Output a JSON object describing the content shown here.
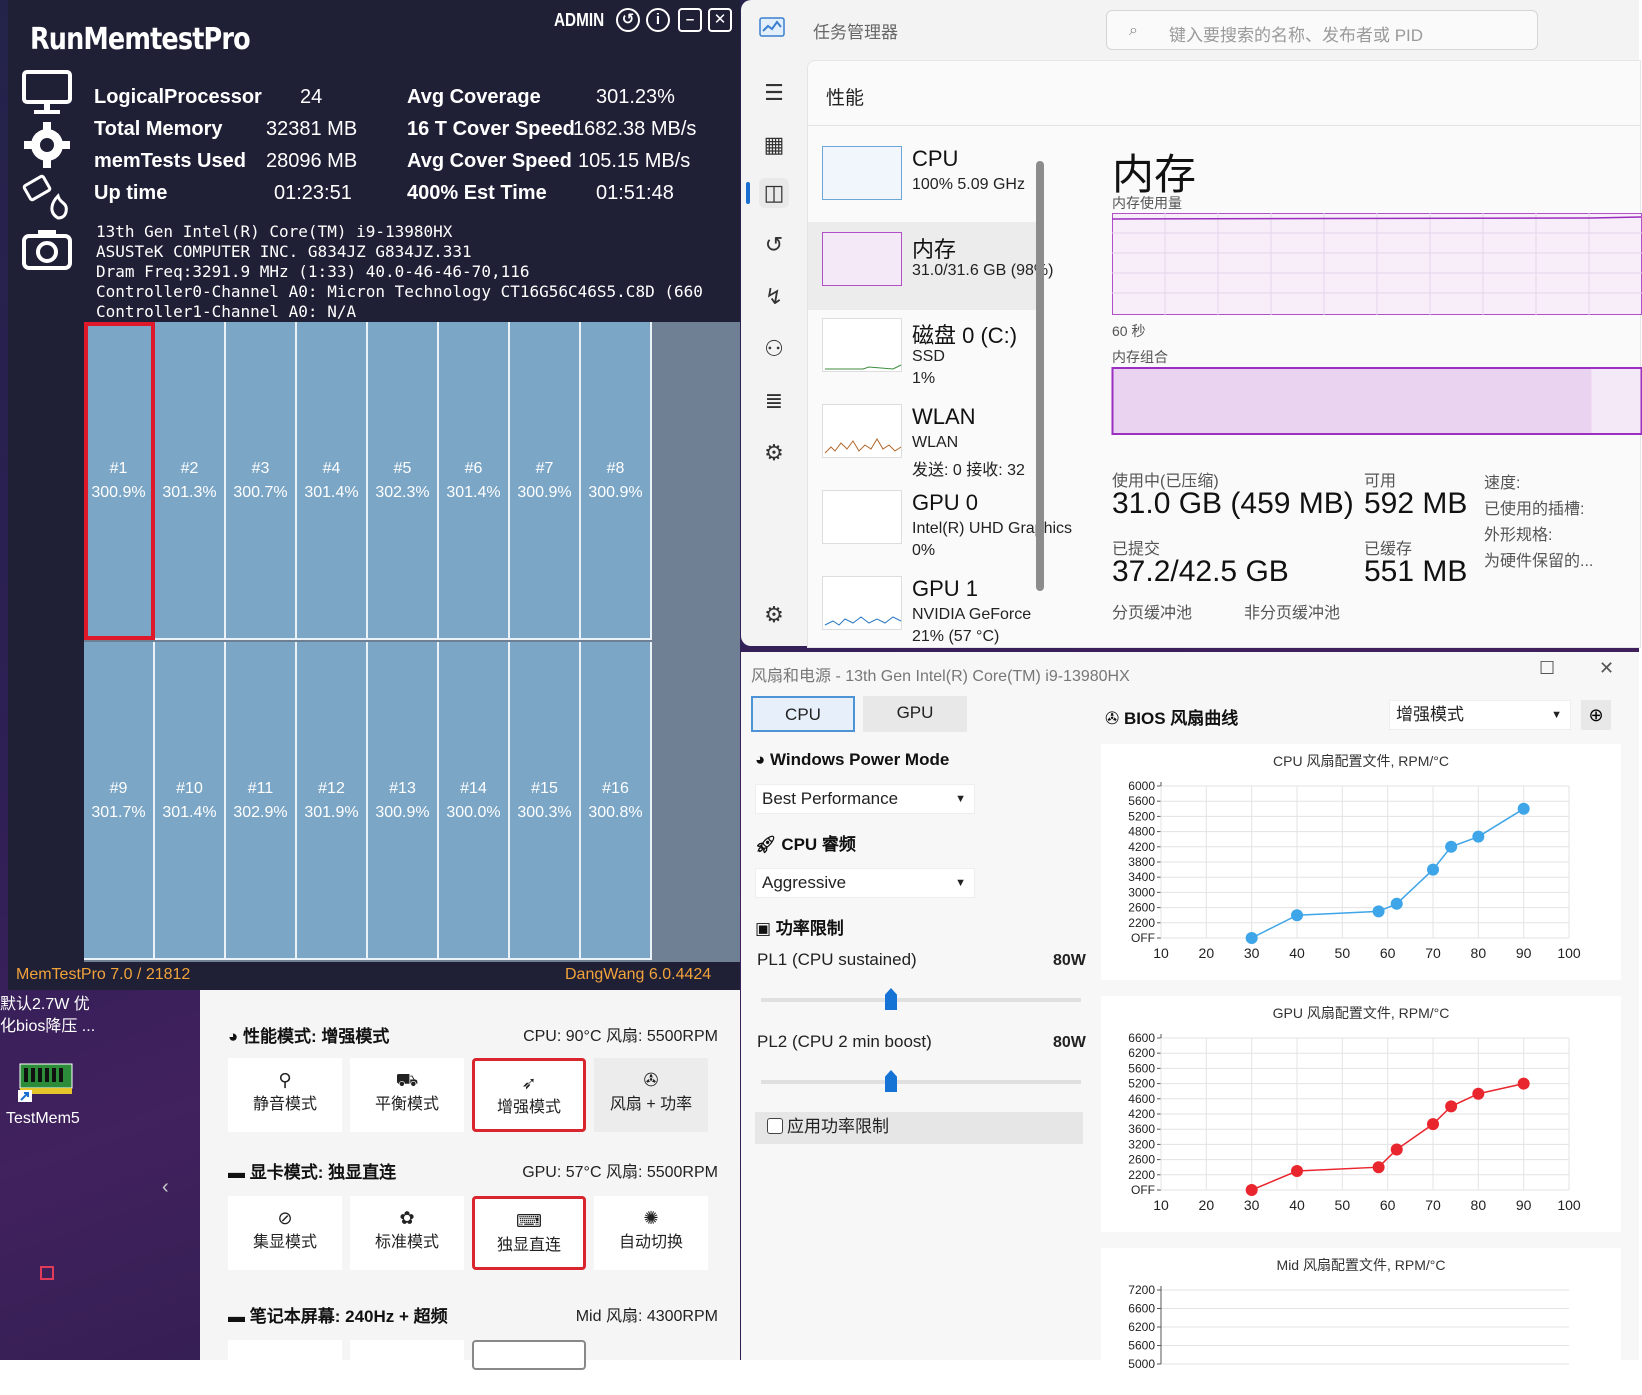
{
  "memtest": {
    "title": "RunMemtestPro",
    "admin": "ADMIN",
    "stats_left": [
      {
        "label": "LogicalProcessor",
        "value": "24"
      },
      {
        "label": "Total Memory",
        "value": "32381 MB"
      },
      {
        "label": "memTests Used",
        "value": "28096 MB"
      },
      {
        "label": "Up time",
        "value": "01:23:51"
      }
    ],
    "stats_right": [
      {
        "label": "Avg Coverage",
        "value": "301.23%"
      },
      {
        "label": "16 T Cover Speed",
        "value": "1682.38 MB/s"
      },
      {
        "label": "Avg Cover Speed",
        "value": "105.15 MB/s"
      },
      {
        "label": "400% Est Time",
        "value": "01:51:48"
      }
    ],
    "sysinfo": [
      "13th Gen Intel(R) Core(TM) i9-13980HX",
      "ASUSTeK COMPUTER INC. G834JZ G834JZ.331",
      "Dram Freq:3291.9 MHz (1:33) 40.0-46-46-70,116",
      "Controller0-Channel A0: Micron Technology CT16G56C46S5.C8D (660",
      "Controller1-Channel A0:  N/A"
    ],
    "threads": [
      {
        "id": "#1",
        "pct": "300.9%"
      },
      {
        "id": "#2",
        "pct": "301.3%"
      },
      {
        "id": "#3",
        "pct": "300.7%"
      },
      {
        "id": "#4",
        "pct": "301.4%"
      },
      {
        "id": "#5",
        "pct": "302.3%"
      },
      {
        "id": "#6",
        "pct": "301.4%"
      },
      {
        "id": "#7",
        "pct": "300.9%"
      },
      {
        "id": "#8",
        "pct": "300.9%"
      },
      {
        "id": "#9",
        "pct": "301.7%"
      },
      {
        "id": "#10",
        "pct": "301.4%"
      },
      {
        "id": "#11",
        "pct": "302.9%"
      },
      {
        "id": "#12",
        "pct": "301.9%"
      },
      {
        "id": "#13",
        "pct": "300.9%"
      },
      {
        "id": "#14",
        "pct": "300.0%"
      },
      {
        "id": "#15",
        "pct": "300.3%"
      },
      {
        "id": "#16",
        "pct": "300.8%"
      }
    ],
    "footer_left": "MemTestPro 7.0 / 21812",
    "footer_right": "DangWang 6.0.4424"
  },
  "taskmgr": {
    "title": "任务管理器",
    "search_placeholder": "键入要搜索的名称、发布者或 PID",
    "section": "性能",
    "perf_list": [
      {
        "name": "CPU",
        "d1": "100%  5.09 GHz",
        "d2": ""
      },
      {
        "name": "内存",
        "d1": "31.0/31.6 GB (98%)",
        "d2": ""
      },
      {
        "name": "磁盘 0 (C:)",
        "d1": "SSD",
        "d2": "1%"
      },
      {
        "name": "WLAN",
        "d1": "WLAN",
        "d2": "发送: 0 接收: 32"
      },
      {
        "name": "GPU 0",
        "d1": "Intel(R) UHD Graphics",
        "d2": "0%"
      },
      {
        "name": "GPU 1",
        "d1": "NVIDIA GeForce",
        "d2": "21% (57 °C)"
      }
    ],
    "memory_title": "内存",
    "usage_label": "内存使用量",
    "time_label": "60 秒",
    "composition_label": "内存组合",
    "in_use_label": "使用中(已压缩)",
    "in_use_value": "31.0 GB (459 MB)",
    "available_label": "可用",
    "available_value": "592 MB",
    "committed_label": "已提交",
    "committed_value": "37.2/42.5 GB",
    "cached_label": "已缓存",
    "cached_value": "551 MB",
    "paged_label": "分页缓冲池",
    "nonpaged_label": "非分页缓冲池",
    "right_labels": [
      "速度:",
      "已使用的插槽:",
      "外形规格:",
      "为硬件保留的..."
    ]
  },
  "fanpower": {
    "title": "风扇和电源 - 13th Gen Intel(R) Core(TM) i9-13980HX",
    "tabs": [
      "CPU",
      "GPU"
    ],
    "power_mode_label": "Windows Power Mode",
    "power_mode_value": "Best Performance",
    "boost_label": "CPU 睿频",
    "boost_value": "Aggressive",
    "limit_label": "功率限制",
    "pl1_label": "PL1 (CPU sustained)",
    "pl1_value": "80W",
    "pl2_label": "PL2 (CPU 2 min boost)",
    "pl2_value": "80W",
    "apply_label": "应用功率限制",
    "bios_label": "BIOS 风扇曲线",
    "bios_mode": "增强模式",
    "close_glyph": "✕",
    "max_glyph": "☐"
  },
  "chart_data": [
    {
      "type": "line",
      "title": "CPU 风扇配置文件, RPM/°C",
      "x": [
        30,
        40,
        58,
        62,
        70,
        74,
        80,
        90
      ],
      "values": [
        0,
        2400,
        2500,
        2700,
        3600,
        4200,
        4600,
        5400
      ],
      "xticks": [
        "10",
        "20",
        "30",
        "40",
        "50",
        "60",
        "70",
        "80",
        "90",
        "100"
      ],
      "yticks": [
        "OFF",
        "2200",
        "2600",
        "3000",
        "3400",
        "3800",
        "4200",
        "4800",
        "5200",
        "5600",
        "6000"
      ],
      "color": "#3ea5e8"
    },
    {
      "type": "line",
      "title": "GPU 风扇配置文件, RPM/°C",
      "x": [
        30,
        40,
        58,
        62,
        70,
        74,
        80,
        90
      ],
      "values": [
        0,
        2300,
        2400,
        3000,
        3800,
        4400,
        4800,
        5200
      ],
      "xticks": [
        "10",
        "20",
        "30",
        "40",
        "50",
        "60",
        "70",
        "80",
        "90",
        "100"
      ],
      "yticks": [
        "OFF",
        "2200",
        "2600",
        "3200",
        "3600",
        "4200",
        "4600",
        "5200",
        "5600",
        "6200",
        "6600"
      ],
      "color": "#e9252d"
    },
    {
      "type": "line",
      "title": "Mid 风扇配置文件, RPM/°C",
      "x": [],
      "values": [],
      "xticks": [],
      "yticks": [
        "5000",
        "5600",
        "6200",
        "6600",
        "7200"
      ],
      "color": "#888888"
    }
  ],
  "armoury": {
    "perf_header": "性能模式: 增强模式",
    "perf_status": "CPU: 90°C 风扇: 5500RPM",
    "perf_modes": [
      "静音模式",
      "平衡模式",
      "增强模式",
      "风扇 + 功率"
    ],
    "gpu_header": "显卡模式: 独显直连",
    "gpu_status": "GPU: 57°C 风扇: 5500RPM",
    "gpu_modes": [
      "集显模式",
      "标准模式",
      "独显直连",
      "自动切换"
    ],
    "screen_header": "笔记本屏幕: 240Hz + 超频",
    "screen_status": "Mid 风扇: 4300RPM"
  },
  "desktop": {
    "note1": "默认2.7W 优",
    "note2": "化bios降压 ...",
    "icon_label": "TestMem5"
  }
}
